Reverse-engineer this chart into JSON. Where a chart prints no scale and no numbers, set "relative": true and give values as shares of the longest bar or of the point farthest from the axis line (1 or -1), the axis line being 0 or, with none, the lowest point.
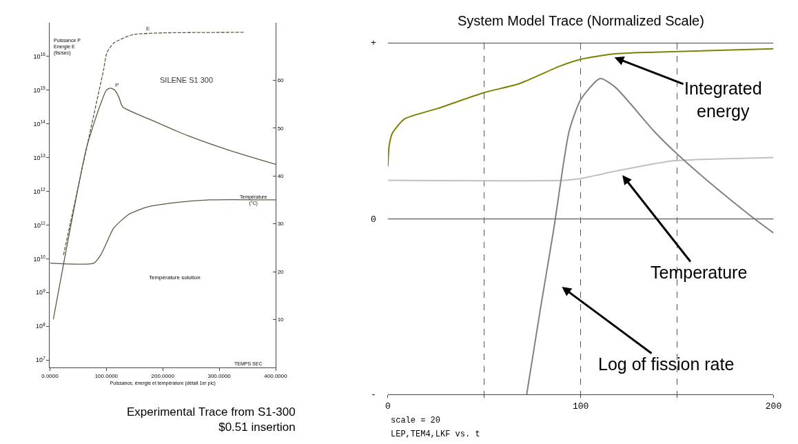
{
  "chart_data": [
    {
      "type": "line",
      "title": "SILENE S1 300",
      "ylabel": "Puissance P\nEnergie E\n(fis/sec)",
      "y2label": "Température\n(°C)",
      "xlabel": "Puissance, énergie et température (détail 1er pic)",
      "log": "y",
      "grid": false,
      "legend": false,
      "xlim": [
        0,
        400
      ],
      "xticks": [
        {
          "value": 0,
          "label": "0.0000"
        },
        {
          "value": 100,
          "label": "100.0000"
        },
        {
          "value": 200,
          "label": "200.0000"
        },
        {
          "value": 300,
          "label": "300.0000"
        },
        {
          "value": 400,
          "label": "400.0000"
        }
      ],
      "ylim": [
        6000000,
        100000000000000000
      ],
      "yticks": [
        {
          "value": 10000000,
          "label": "10$^{7}$"
        },
        {
          "value": 100000000,
          "label": "10$^{8}$"
        },
        {
          "value": 1000000000,
          "label": "10$^{9}$"
        },
        {
          "value": 10000000000,
          "label": "10$^{10}$"
        },
        {
          "value": 100000000000,
          "label": "10$^{11}$"
        },
        {
          "value": 1000000000000,
          "label": "10$^{12}$"
        },
        {
          "value": 10000000000000,
          "label": "10$^{13}$"
        },
        {
          "value": 100000000000000,
          "label": "10$^{14}$"
        },
        {
          "value": 1000000000000000,
          "label": "10$^{15}$"
        },
        {
          "value": 10000000000000000,
          "label": "10$^{16}$"
        }
      ],
      "y2lim": [
        0,
        72
      ],
      "y2ticks": [
        10,
        20,
        30,
        40,
        50,
        60
      ],
      "series": [
        {
          "color": "#5a5a40",
          "line_style": "solid",
          "x": [
            6,
            65,
            90,
            100,
            107,
            115,
            122,
            129,
            180,
            244,
            320,
            400
          ],
          "values": [
            160000000,
            20000000000000,
            400000000000000,
            1000000000000000,
            1150000000000000,
            1000000000000000,
            630000000000000,
            320000000000000,
            130000000000000,
            45000000000000,
            16000000000000,
            6300000000000
          ]
        },
        {
          "color": "#5a5a40",
          "line_style": "dashed",
          "x": [
            24,
            60,
            95,
            101,
            113,
            130,
            149,
            200,
            343
          ],
          "values": [
            13000000000,
            8000000000000,
            4000000000000000,
            13000000000000000,
            25000000000000000,
            35000000000000000,
            45000000000000000,
            50000000000000000,
            52000000000000000
          ]
        },
        {
          "color": "#5a5a40",
          "line_style": "solid",
          "axis": "y2",
          "x": [
            0,
            78,
            90,
            101,
            113,
            140,
            172,
            220,
            283,
            400
          ],
          "values": [
            21.8,
            21.8,
            23.5,
            26.2,
            29.1,
            32,
            33.5,
            34.4,
            35,
            35
          ]
        }
      ],
      "annotations": [
        "TEMPS SEC",
        "Experimental Trace from S1-300\n$0.51 insertion",
        {
          "text": "P",
          "x": 119,
          "y": 1050000000000000
        },
        {
          "text": "E",
          "x": 173,
          "y": 49000000000000000
        },
        "Température solution"
      ]
    },
    {
      "type": "line",
      "title": "System Model Trace (Normalized Scale)",
      "grid": "x",
      "legend": false,
      "xlim": [
        0,
        200
      ],
      "xticks": [
        0,
        {
          "value": 50,
          "label": null
        },
        100,
        {
          "value": 150,
          "label": null
        },
        200
      ],
      "relative": true,
      "ref_lines": [
        {
          "axis": "y",
          "value": 0,
          "line_style": "solid",
          "color": "#707070"
        }
      ],
      "series": [
        {
          "color": "#808000",
          "x": [
            0,
            0.7,
            2.4,
            8.7,
            26,
            50,
            68,
            89,
            100,
            117,
            138,
            200
          ],
          "values": [
            0.3,
            0.42,
            0.49,
            0.57,
            0.63,
            0.72,
            0.77,
            0.87,
            0.91,
            0.94,
            0.95,
            0.97
          ]
        },
        {
          "color": "#c0c0c0",
          "x": [
            0,
            92,
            100,
            117,
            131,
            147,
            165.5,
            200
          ],
          "values": [
            0.22,
            0.22,
            0.23,
            0.27,
            0.3,
            0.33,
            0.34,
            0.35
          ]
        },
        {
          "color": "#808080",
          "x": [
            72,
            79,
            86,
            94,
            100,
            110,
            118,
            138,
            150,
            165.5,
            189,
            200
          ],
          "values": [
            -1,
            -0.52,
            -0.06,
            0.5,
            0.68,
            0.8,
            0.75,
            0.5,
            0.37,
            0.22,
            0.01,
            -0.08
          ]
        }
      ],
      "annotations": [
        {
          "text": "Integrated\nenergy",
          "x": 117.5,
          "y": 0.92
        },
        "Temperature",
        "Log of fission rate",
        "scale = 20",
        "LEP,TEM4,LKF vs. t",
        "+",
        "0",
        "-"
      ]
    }
  ]
}
